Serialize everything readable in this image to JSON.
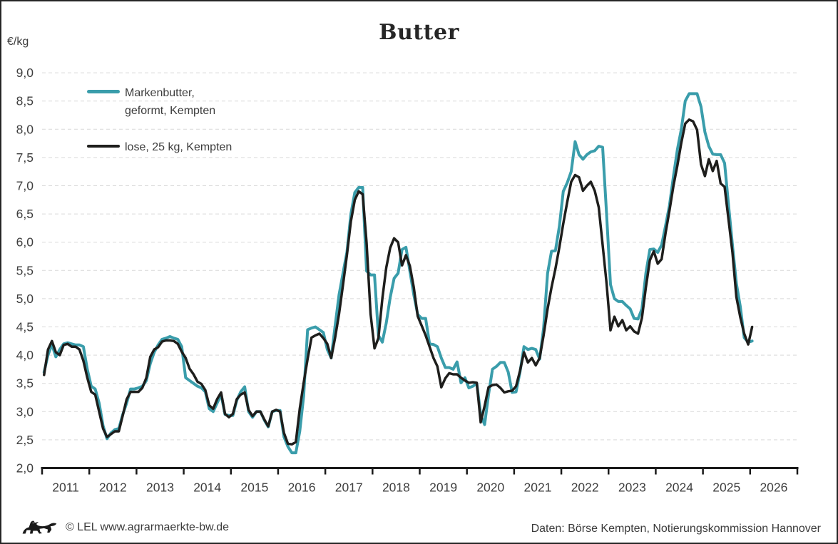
{
  "title": "Butter",
  "unit_label": "€/kg",
  "legend": {
    "items": [
      {
        "name": "Markenbutter, geformt, Kempten",
        "line1": "Markenbutter,",
        "line2": "geformt, Kempten",
        "color": "#3A9DAB"
      },
      {
        "name": "lose, 25 kg, Kempten",
        "line1": "lose, 25 kg, Kempten",
        "line2": "",
        "color": "#1E1E1C"
      }
    ]
  },
  "footer": {
    "left": "© LEL www.agrarmaerkte-bw.de",
    "right": "Daten: Börse Kempten, Notierungskommission Hannover"
  },
  "chart_data": {
    "type": "line",
    "title": "Butter",
    "ylabel": "€/kg",
    "xlabel": "",
    "ylim": [
      2.0,
      9.0
    ],
    "ytick_step": 0.5,
    "ytick_labels": [
      "2,0",
      "2,5",
      "3,0",
      "3,5",
      "4,0",
      "4,5",
      "5,0",
      "5,5",
      "6,0",
      "6,5",
      "7,0",
      "7,5",
      "8,0",
      "8,5",
      "9,0"
    ],
    "xlim": [
      2011,
      2027
    ],
    "xtick_labels": [
      "2011",
      "2012",
      "2013",
      "2014",
      "2015",
      "2016",
      "2017",
      "2018",
      "2019",
      "2020",
      "2021",
      "2022",
      "2023",
      "2024",
      "2025",
      "2026"
    ],
    "x_start_year": 2011,
    "interval": "monthly",
    "grid": "horizontal-dashed",
    "legend_position": "top-left-inside",
    "series": [
      {
        "name": "Markenbutter, geformt, Kempten",
        "color": "#3A9DAB",
        "width": 4,
        "values": [
          3.7,
          4.0,
          4.19,
          3.97,
          4.1,
          4.2,
          4.22,
          4.2,
          4.18,
          4.18,
          4.15,
          3.75,
          3.45,
          3.4,
          3.15,
          2.75,
          2.52,
          2.62,
          2.68,
          2.7,
          2.95,
          3.15,
          3.4,
          3.4,
          3.42,
          3.45,
          3.55,
          3.85,
          4.05,
          4.18,
          4.28,
          4.3,
          4.33,
          4.3,
          4.28,
          4.15,
          3.6,
          3.55,
          3.5,
          3.45,
          3.42,
          3.35,
          3.05,
          3.0,
          3.15,
          3.3,
          2.95,
          2.93,
          2.93,
          3.2,
          3.35,
          3.44,
          3.0,
          2.9,
          3.0,
          3.0,
          2.85,
          2.73,
          3.0,
          3.02,
          3.02,
          2.55,
          2.38,
          2.27,
          2.27,
          2.65,
          3.28,
          4.45,
          4.48,
          4.5,
          4.45,
          4.4,
          4.1,
          3.95,
          4.52,
          5.07,
          5.45,
          5.83,
          6.5,
          6.88,
          6.97,
          6.97,
          5.49,
          5.42,
          5.42,
          4.35,
          4.23,
          4.57,
          5.02,
          5.36,
          5.45,
          5.87,
          5.91,
          5.49,
          5.07,
          4.72,
          4.65,
          4.65,
          4.2,
          4.19,
          4.15,
          3.95,
          3.78,
          3.78,
          3.75,
          3.88,
          3.51,
          3.6,
          3.42,
          3.45,
          3.5,
          2.95,
          2.77,
          3.3,
          3.75,
          3.8,
          3.87,
          3.87,
          3.7,
          3.34,
          3.35,
          3.7,
          4.15,
          4.1,
          4.12,
          4.1,
          3.93,
          4.48,
          5.45,
          5.84,
          5.85,
          6.28,
          6.9,
          7.05,
          7.25,
          7.78,
          7.55,
          7.47,
          7.55,
          7.6,
          7.62,
          7.7,
          7.68,
          6.5,
          5.25,
          5.0,
          4.95,
          4.95,
          4.88,
          4.82,
          4.65,
          4.64,
          4.82,
          5.45,
          5.87,
          5.88,
          5.82,
          5.95,
          6.29,
          6.65,
          7.17,
          7.64,
          8.0,
          8.5,
          8.63,
          8.63,
          8.63,
          8.4,
          7.95,
          7.7,
          7.56,
          7.55,
          7.55,
          7.4,
          6.66,
          5.95,
          5.27,
          4.86,
          4.31,
          4.23,
          4.25
        ]
      },
      {
        "name": "lose, 25 kg, Kempten",
        "color": "#1E1E1C",
        "width": 3.5,
        "values": [
          3.65,
          4.1,
          4.25,
          4.05,
          4.0,
          4.18,
          4.2,
          4.15,
          4.15,
          4.1,
          3.9,
          3.6,
          3.35,
          3.3,
          3.0,
          2.7,
          2.55,
          2.6,
          2.65,
          2.65,
          2.93,
          3.22,
          3.35,
          3.35,
          3.35,
          3.42,
          3.6,
          3.97,
          4.1,
          4.14,
          4.24,
          4.26,
          4.26,
          4.25,
          4.2,
          4.06,
          3.95,
          3.76,
          3.66,
          3.53,
          3.49,
          3.38,
          3.11,
          3.05,
          3.22,
          3.34,
          2.96,
          2.9,
          2.96,
          3.22,
          3.3,
          3.34,
          3.03,
          2.92,
          3.0,
          3.0,
          2.86,
          2.74,
          3.0,
          3.03,
          3.0,
          2.62,
          2.43,
          2.42,
          2.46,
          3.05,
          3.51,
          3.93,
          4.31,
          4.35,
          4.38,
          4.3,
          4.2,
          3.95,
          4.31,
          4.73,
          5.24,
          5.78,
          6.37,
          6.75,
          6.9,
          6.85,
          5.99,
          4.73,
          4.12,
          4.3,
          5.0,
          5.55,
          5.9,
          6.07,
          6.0,
          5.59,
          5.77,
          5.58,
          5.2,
          4.69,
          4.52,
          4.35,
          4.15,
          3.95,
          3.8,
          3.43,
          3.59,
          3.68,
          3.66,
          3.66,
          3.6,
          3.55,
          3.51,
          3.52,
          3.51,
          2.81,
          3.1,
          3.43,
          3.47,
          3.48,
          3.42,
          3.34,
          3.36,
          3.37,
          3.45,
          3.72,
          4.05,
          3.87,
          3.95,
          3.82,
          3.95,
          4.35,
          4.82,
          5.2,
          5.53,
          5.91,
          6.33,
          6.71,
          7.07,
          7.19,
          7.15,
          6.91,
          7.0,
          7.07,
          6.91,
          6.62,
          5.95,
          5.27,
          4.44,
          4.68,
          4.51,
          4.62,
          4.44,
          4.51,
          4.42,
          4.38,
          4.66,
          5.2,
          5.68,
          5.84,
          5.62,
          5.7,
          6.16,
          6.56,
          7.0,
          7.36,
          7.76,
          8.1,
          8.17,
          8.14,
          7.99,
          7.38,
          7.17,
          7.47,
          7.26,
          7.44,
          7.04,
          6.98,
          6.4,
          5.82,
          5.03,
          4.67,
          4.38,
          4.19,
          4.5
        ]
      }
    ]
  }
}
